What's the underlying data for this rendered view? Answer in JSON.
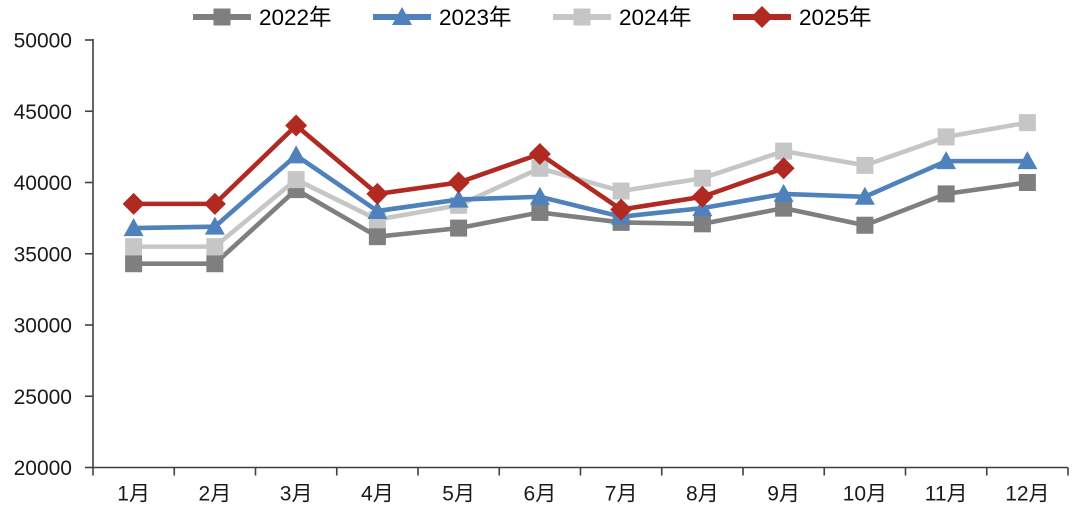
{
  "chart_data": {
    "type": "line",
    "title": "",
    "xlabel": "",
    "ylabel": "",
    "x": [
      "1月",
      "2月",
      "3月",
      "4月",
      "5月",
      "6月",
      "7月",
      "8月",
      "9月",
      "10月",
      "11月",
      "12月"
    ],
    "series": [
      {
        "name": "2022年",
        "color": "#7F7F7F",
        "marker": "square",
        "values": [
          34300,
          34300,
          39500,
          36200,
          36800,
          37900,
          37200,
          37100,
          38200,
          37000,
          39200,
          40000
        ]
      },
      {
        "name": "2023年",
        "color": "#4F81BD",
        "marker": "triangle",
        "values": [
          36800,
          36900,
          41900,
          38000,
          38800,
          39000,
          37600,
          38200,
          39200,
          39000,
          41500,
          41500
        ]
      },
      {
        "name": "2024年",
        "color": "#C6C6C6",
        "marker": "square",
        "values": [
          35500,
          35500,
          40200,
          37400,
          38400,
          41000,
          39400,
          40300,
          42200,
          41200,
          43200,
          44200
        ]
      },
      {
        "name": "2025年",
        "color": "#B02A22",
        "marker": "diamond",
        "values": [
          38500,
          38500,
          44000,
          39200,
          40000,
          42000,
          38100,
          39000,
          41000,
          null,
          null,
          null
        ]
      }
    ],
    "ylim": [
      20000,
      50000
    ],
    "yticks": [
      20000,
      25000,
      30000,
      35000,
      40000,
      45000,
      50000
    ],
    "grid": false,
    "legend_position": "top",
    "draw_order": [
      0,
      2,
      1,
      3
    ],
    "axis_color": "#404040",
    "tick_label_color": "#1a1a1a",
    "legend_text_color": "#000000"
  }
}
